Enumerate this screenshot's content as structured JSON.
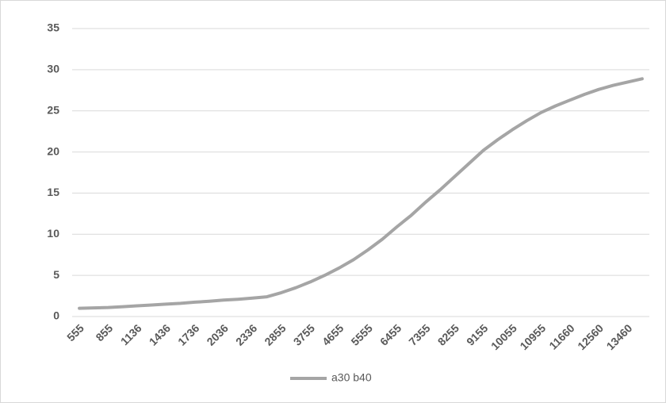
{
  "chart_data": {
    "type": "line",
    "categories": [
      "555",
      null,
      "855",
      null,
      "1136",
      null,
      "1436",
      null,
      "1736",
      null,
      "2036",
      null,
      "2336",
      null,
      "2855",
      null,
      "3755",
      null,
      "4655",
      null,
      "5555",
      null,
      "6455",
      null,
      "7355",
      null,
      "8255",
      null,
      "9155",
      null,
      "10055",
      null,
      "10955",
      null,
      "11660",
      null,
      "12560",
      null,
      "13460",
      null
    ],
    "series": [
      {
        "name": "a30 b40",
        "color": "#a5a5a5",
        "values": [
          1.0,
          1.05,
          1.1,
          1.2,
          1.3,
          1.4,
          1.5,
          1.6,
          1.75,
          1.85,
          2.0,
          2.1,
          2.25,
          2.4,
          2.9,
          3.5,
          4.2,
          5.0,
          5.9,
          6.9,
          8.1,
          9.4,
          10.9,
          12.3,
          13.9,
          15.4,
          17.0,
          18.6,
          20.2,
          21.5,
          22.7,
          23.8,
          24.8,
          25.6,
          26.3,
          27.0,
          27.6,
          28.1,
          28.5,
          28.9
        ]
      }
    ],
    "ylim": [
      0,
      35
    ],
    "yticks": [
      0,
      5,
      10,
      15,
      20,
      25,
      30,
      35
    ],
    "grid": true,
    "legend": "bottom"
  }
}
